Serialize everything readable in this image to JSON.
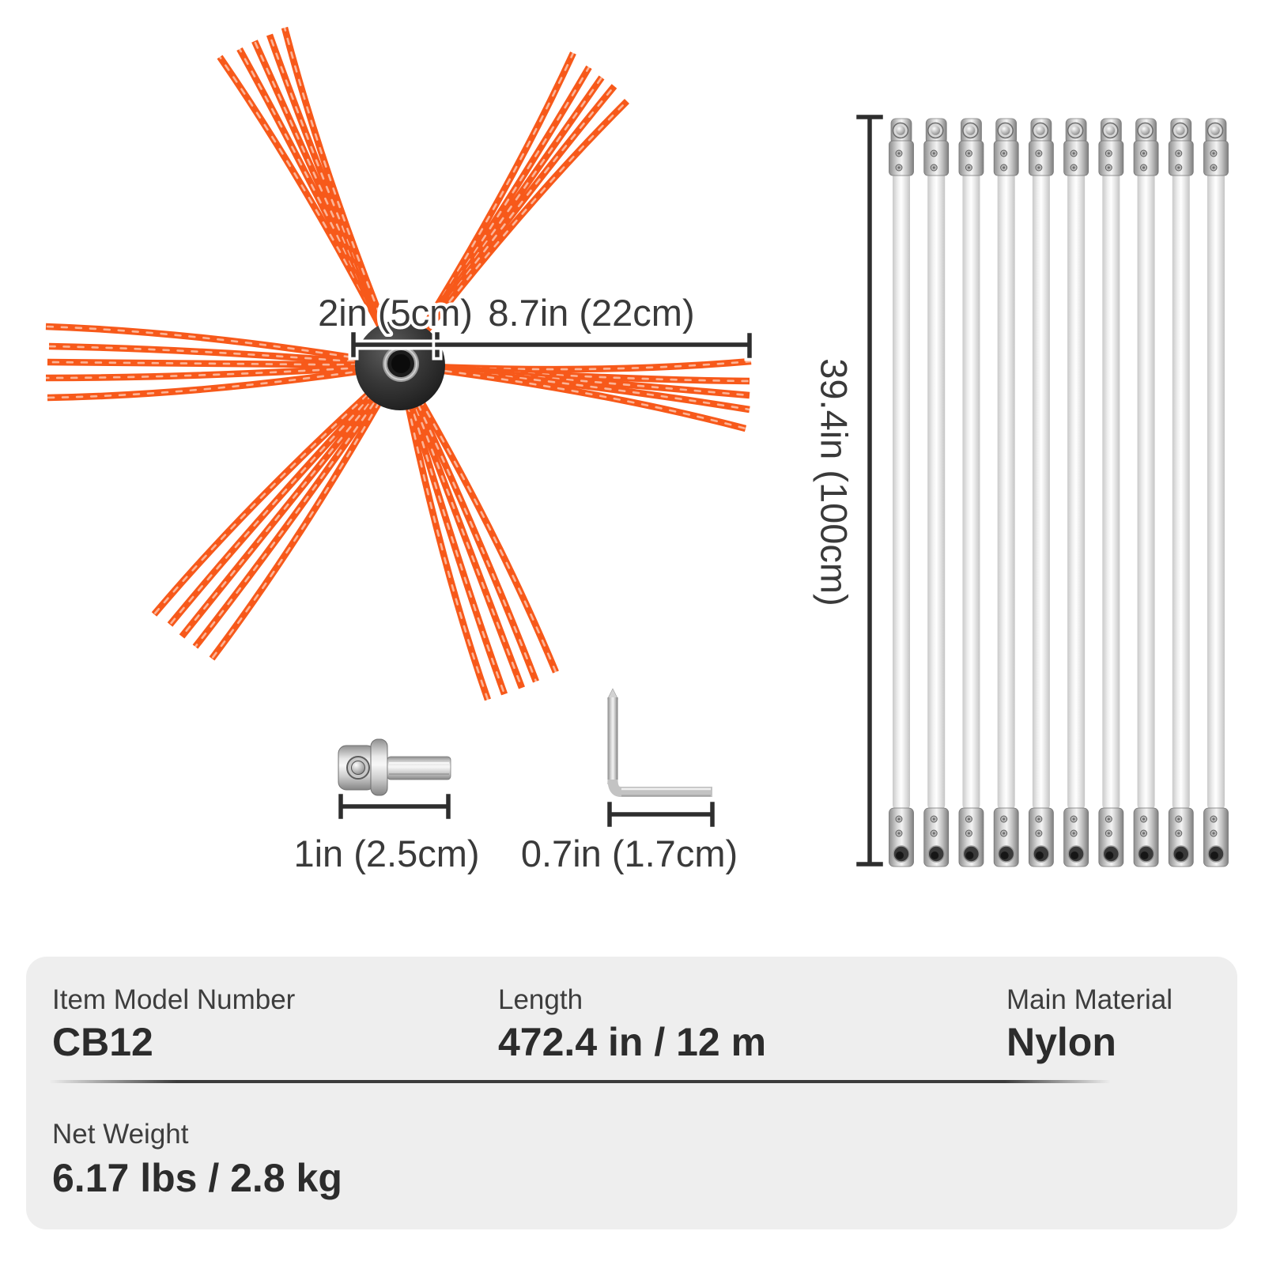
{
  "diagram": {
    "brush": {
      "name": "chimney brush head",
      "hub_diameter": "2in (5cm)",
      "bristle_length": "8.7in (22cm)",
      "bristle_clusters": 6,
      "strands_per_cluster": 5
    },
    "rods": {
      "name": "flexible extension rods",
      "count": 10,
      "length": "39.4in (100cm)"
    },
    "adapter": {
      "name": "drill adapter bit",
      "length": "1in (2.5cm)"
    },
    "hex_key": {
      "name": "hex key wrench",
      "size": "0.7in (1.7cm)"
    }
  },
  "specs": {
    "rows": [
      {
        "cells": [
          {
            "label": "Item Model Number",
            "value": "CB12"
          },
          {
            "label": "Length",
            "value": "472.4 in / 12 m"
          },
          {
            "label": "Main Material",
            "value": "Nylon"
          }
        ]
      },
      {
        "cells": [
          {
            "label": "Net Weight",
            "value": "6.17 lbs / 2.8 kg"
          }
        ]
      }
    ]
  },
  "colors": {
    "bristle": "#f7591a",
    "dimension_text": "#3a3a3a",
    "dimension_line": "#2e2e2e",
    "table_background": "#eeeeee"
  }
}
